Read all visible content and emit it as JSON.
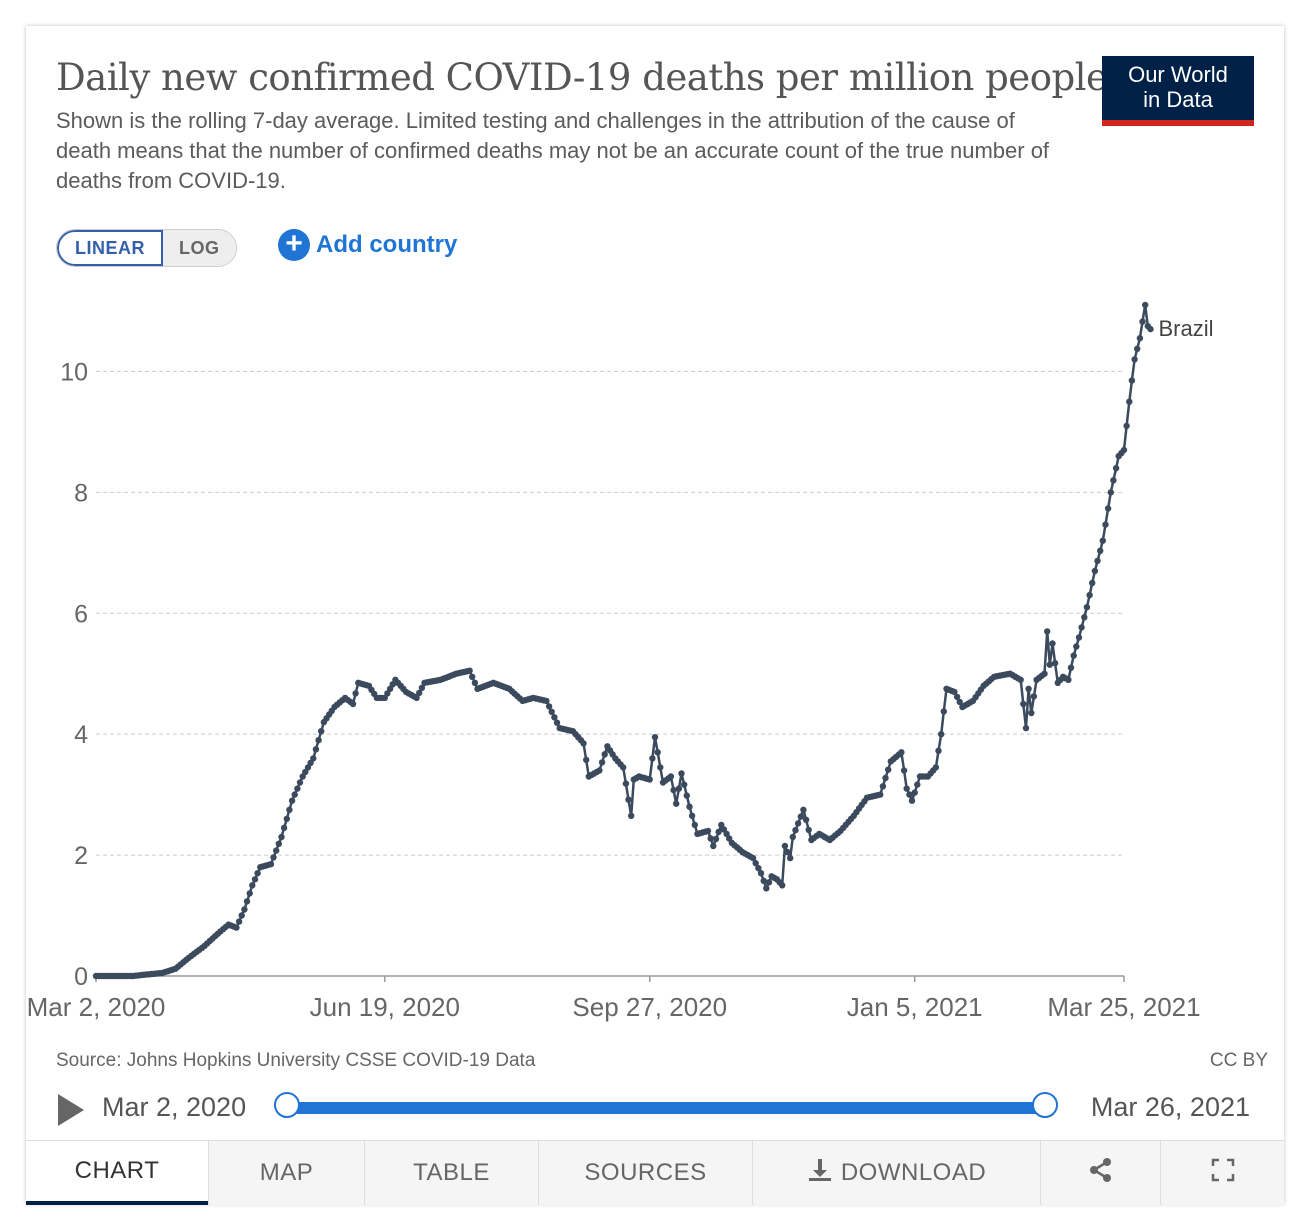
{
  "header": {
    "title": "Daily new confirmed COVID-19 deaths per million people",
    "subtitle": "Shown is the rolling 7-day average. Limited testing and challenges in the attribution of the cause of death means that the number of confirmed deaths may not be an accurate count of the true number of deaths from COVID-19.",
    "logo_line1": "Our World",
    "logo_line2": "in Data"
  },
  "controls": {
    "scale_linear": "LINEAR",
    "scale_log": "LOG",
    "add_country": "Add country"
  },
  "chart_data": {
    "type": "line",
    "title": "Daily new confirmed COVID-19 deaths per million people",
    "ylim": [
      0,
      11
    ],
    "xlim": [
      "2020-03-02",
      "2021-03-25"
    ],
    "y_ticks": [
      "0",
      "2",
      "4",
      "6",
      "8",
      "10"
    ],
    "x_ticks": [
      "Mar 2, 2020",
      "Jun 19, 2020",
      "Sep 27, 2020",
      "Jan 5, 2021",
      "Mar 25, 2021"
    ],
    "x_tick_dates": [
      "2020-03-02",
      "2020-06-19",
      "2020-09-27",
      "2021-01-05",
      "2021-03-25"
    ],
    "grid": true,
    "series": [
      {
        "name": "Brazil",
        "color": "#3b4a5c",
        "points": [
          [
            "2020-03-02",
            0
          ],
          [
            "2020-03-16",
            0
          ],
          [
            "2020-03-20",
            0.02
          ],
          [
            "2020-03-27",
            0.05
          ],
          [
            "2020-04-01",
            0.12
          ],
          [
            "2020-04-06",
            0.3
          ],
          [
            "2020-04-12",
            0.5
          ],
          [
            "2020-04-17",
            0.7
          ],
          [
            "2020-04-21",
            0.85
          ],
          [
            "2020-04-24",
            0.8
          ],
          [
            "2020-04-27",
            1.1
          ],
          [
            "2020-04-30",
            1.5
          ],
          [
            "2020-05-03",
            1.8
          ],
          [
            "2020-05-07",
            1.85
          ],
          [
            "2020-05-11",
            2.3
          ],
          [
            "2020-05-15",
            2.9
          ],
          [
            "2020-05-19",
            3.3
          ],
          [
            "2020-05-23",
            3.6
          ],
          [
            "2020-05-27",
            4.2
          ],
          [
            "2020-05-31",
            4.45
          ],
          [
            "2020-06-04",
            4.6
          ],
          [
            "2020-06-07",
            4.5
          ],
          [
            "2020-06-09",
            4.85
          ],
          [
            "2020-06-13",
            4.8
          ],
          [
            "2020-06-16",
            4.6
          ],
          [
            "2020-06-19",
            4.6
          ],
          [
            "2020-06-23",
            4.9
          ],
          [
            "2020-06-27",
            4.7
          ],
          [
            "2020-07-01",
            4.6
          ],
          [
            "2020-07-04",
            4.85
          ],
          [
            "2020-07-10",
            4.9
          ],
          [
            "2020-07-16",
            5.0
          ],
          [
            "2020-07-21",
            5.05
          ],
          [
            "2020-07-24",
            4.75
          ],
          [
            "2020-07-30",
            4.85
          ],
          [
            "2020-08-05",
            4.75
          ],
          [
            "2020-08-10",
            4.55
          ],
          [
            "2020-08-14",
            4.6
          ],
          [
            "2020-08-19",
            4.55
          ],
          [
            "2020-08-24",
            4.1
          ],
          [
            "2020-08-29",
            4.05
          ],
          [
            "2020-09-02",
            3.85
          ],
          [
            "2020-09-04",
            3.3
          ],
          [
            "2020-09-08",
            3.4
          ],
          [
            "2020-09-11",
            3.8
          ],
          [
            "2020-09-14",
            3.6
          ],
          [
            "2020-09-17",
            3.45
          ],
          [
            "2020-09-20",
            2.65
          ],
          [
            "2020-09-21",
            3.25
          ],
          [
            "2020-09-23",
            3.3
          ],
          [
            "2020-09-27",
            3.25
          ],
          [
            "2020-09-29",
            3.95
          ],
          [
            "2020-10-02",
            3.2
          ],
          [
            "2020-10-05",
            3.3
          ],
          [
            "2020-10-07",
            2.85
          ],
          [
            "2020-10-09",
            3.35
          ],
          [
            "2020-10-12",
            2.8
          ],
          [
            "2020-10-15",
            2.35
          ],
          [
            "2020-10-19",
            2.4
          ],
          [
            "2020-10-21",
            2.15
          ],
          [
            "2020-10-24",
            2.5
          ],
          [
            "2020-10-28",
            2.2
          ],
          [
            "2020-11-01",
            2.05
          ],
          [
            "2020-11-05",
            1.95
          ],
          [
            "2020-11-08",
            1.7
          ],
          [
            "2020-11-10",
            1.45
          ],
          [
            "2020-11-12",
            1.65
          ],
          [
            "2020-11-14",
            1.6
          ],
          [
            "2020-11-16",
            1.5
          ],
          [
            "2020-11-17",
            2.15
          ],
          [
            "2020-11-19",
            1.95
          ],
          [
            "2020-11-20",
            2.3
          ],
          [
            "2020-11-24",
            2.75
          ],
          [
            "2020-11-27",
            2.25
          ],
          [
            "2020-11-30",
            2.35
          ],
          [
            "2020-12-04",
            2.25
          ],
          [
            "2020-12-08",
            2.4
          ],
          [
            "2020-12-13",
            2.65
          ],
          [
            "2020-12-18",
            2.95
          ],
          [
            "2020-12-23",
            3.0
          ],
          [
            "2020-12-27",
            3.55
          ],
          [
            "2020-12-31",
            3.7
          ],
          [
            "2021-01-02",
            3.1
          ],
          [
            "2021-01-04",
            2.9
          ],
          [
            "2021-01-07",
            3.3
          ],
          [
            "2021-01-10",
            3.3
          ],
          [
            "2021-01-13",
            3.45
          ],
          [
            "2021-01-15",
            4.0
          ],
          [
            "2021-01-17",
            4.75
          ],
          [
            "2021-01-20",
            4.7
          ],
          [
            "2021-01-23",
            4.45
          ],
          [
            "2021-01-27",
            4.55
          ],
          [
            "2021-01-31",
            4.8
          ],
          [
            "2021-02-04",
            4.95
          ],
          [
            "2021-02-10",
            5.0
          ],
          [
            "2021-02-14",
            4.9
          ],
          [
            "2021-02-16",
            4.1
          ],
          [
            "2021-02-17",
            4.75
          ],
          [
            "2021-02-18",
            4.35
          ],
          [
            "2021-02-20",
            4.9
          ],
          [
            "2021-02-23",
            5.0
          ],
          [
            "2021-02-24",
            5.7
          ],
          [
            "2021-02-25",
            5.15
          ],
          [
            "2021-02-26",
            5.5
          ],
          [
            "2021-02-28",
            4.85
          ],
          [
            "2021-03-02",
            4.95
          ],
          [
            "2021-03-04",
            4.9
          ],
          [
            "2021-03-06",
            5.3
          ],
          [
            "2021-03-08",
            5.6
          ],
          [
            "2021-03-11",
            6.1
          ],
          [
            "2021-03-14",
            6.7
          ],
          [
            "2021-03-17",
            7.2
          ],
          [
            "2021-03-20",
            8.0
          ],
          [
            "2021-03-23",
            8.6
          ],
          [
            "2021-03-25",
            8.7
          ],
          [
            "2021-03-27",
            9.5
          ],
          [
            "2021-03-29",
            10.2
          ],
          [
            "2021-03-31",
            10.55
          ],
          [
            "2021-04-02",
            11.1
          ],
          [
            "2021-04-03",
            10.75
          ],
          [
            "2021-04-04",
            10.7
          ]
        ]
      }
    ],
    "series_label": "Brazil"
  },
  "footer": {
    "source": "Source: Johns Hopkins University CSSE COVID-19 Data",
    "license": "CC BY"
  },
  "timeline": {
    "start": "Mar 2, 2020",
    "end": "Mar 26, 2021"
  },
  "tabs": {
    "chart": "CHART",
    "map": "MAP",
    "table": "TABLE",
    "sources": "SOURCES",
    "download": "DOWNLOAD"
  }
}
